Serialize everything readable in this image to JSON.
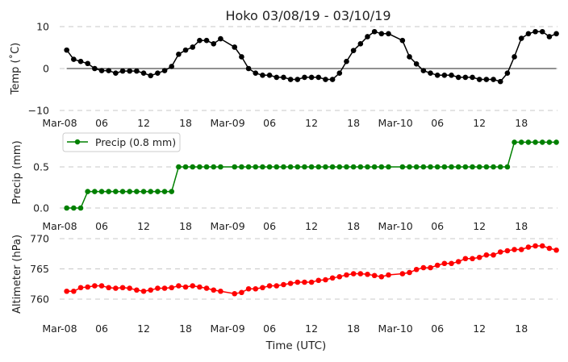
{
  "chart_data": [
    {
      "type": "line",
      "title": "Hoko 03/08/19 - 03/10/19",
      "ylabel": "Temp ($^\\circ$C)",
      "ylabel_display": "Temp (˚C)",
      "ylim": [
        -10,
        10
      ],
      "yticks": [
        "10",
        "0",
        "−10"
      ],
      "ytick_values": [
        10,
        0,
        -10
      ],
      "color": "#000000",
      "grid": true,
      "zero_line": true,
      "x_hours": [
        1,
        2,
        3,
        4,
        5,
        6,
        7,
        8,
        9,
        10,
        11,
        12,
        13,
        14,
        15,
        16,
        17,
        18,
        19,
        20,
        21,
        22,
        23,
        25,
        26,
        27,
        28,
        29,
        30,
        31,
        32,
        33,
        34,
        35,
        36,
        37,
        38,
        39,
        40,
        41,
        42,
        43,
        44,
        45,
        46,
        47,
        49,
        50,
        51,
        52,
        53,
        54,
        55,
        56,
        57,
        58,
        59,
        60,
        61,
        62,
        63,
        64,
        65,
        66,
        67,
        68,
        69,
        70,
        71
      ],
      "values": [
        4.4,
        2.2,
        1.7,
        1.2,
        0,
        -0.5,
        -0.5,
        -1.1,
        -0.6,
        -0.6,
        -0.6,
        -1.1,
        -1.7,
        -1.1,
        -0.5,
        0.5,
        3.4,
        4.4,
        5.1,
        6.7,
        6.7,
        5.9,
        7.1,
        5.1,
        2.8,
        0,
        -1.1,
        -1.6,
        -1.6,
        -2.1,
        -2.1,
        -2.6,
        -2.6,
        -2.1,
        -2.1,
        -2.1,
        -2.6,
        -2.6,
        -1.1,
        1.7,
        4.3,
        5.9,
        7.6,
        8.8,
        8.3,
        8.3,
        6.7,
        2.8,
        1.1,
        -0.5,
        -1.1,
        -1.6,
        -1.6,
        -1.6,
        -2.1,
        -2.1,
        -2.1,
        -2.6,
        -2.6,
        -2.6,
        -3.1,
        -1.1,
        2.8,
        7.2,
        8.3,
        8.8,
        8.8,
        7.6,
        8.3
      ]
    },
    {
      "type": "line",
      "ylabel": "Precip (mm)",
      "ylim": [
        0,
        0.8
      ],
      "yticks": [
        "0.5",
        "0.0"
      ],
      "ytick_values": [
        0.5,
        0
      ],
      "color": "#008000",
      "legend": {
        "label": "Precip (0.8 mm)",
        "placement": "upper-left"
      },
      "grid": true,
      "x_hours": [
        1,
        2,
        3,
        4,
        5,
        6,
        7,
        8,
        9,
        10,
        11,
        12,
        13,
        14,
        15,
        16,
        17,
        18,
        19,
        20,
        21,
        22,
        23,
        25,
        26,
        27,
        28,
        29,
        30,
        31,
        32,
        33,
        34,
        35,
        36,
        37,
        38,
        39,
        40,
        41,
        42,
        43,
        44,
        45,
        46,
        47,
        49,
        50,
        51,
        52,
        53,
        54,
        55,
        56,
        57,
        58,
        59,
        60,
        61,
        62,
        63,
        64,
        65,
        66,
        67,
        68,
        69,
        70,
        71
      ],
      "values": [
        0,
        0,
        0,
        0.2,
        0.2,
        0.2,
        0.2,
        0.2,
        0.2,
        0.2,
        0.2,
        0.2,
        0.2,
        0.2,
        0.2,
        0.2,
        0.5,
        0.5,
        0.5,
        0.5,
        0.5,
        0.5,
        0.5,
        0.5,
        0.5,
        0.5,
        0.5,
        0.5,
        0.5,
        0.5,
        0.5,
        0.5,
        0.5,
        0.5,
        0.5,
        0.5,
        0.5,
        0.5,
        0.5,
        0.5,
        0.5,
        0.5,
        0.5,
        0.5,
        0.5,
        0.5,
        0.5,
        0.5,
        0.5,
        0.5,
        0.5,
        0.5,
        0.5,
        0.5,
        0.5,
        0.5,
        0.5,
        0.5,
        0.5,
        0.5,
        0.5,
        0.5,
        0.8,
        0.8,
        0.8,
        0.8,
        0.8,
        0.8,
        0.8
      ]
    },
    {
      "type": "line",
      "ylabel": "Altimeter (hPa)",
      "xlabel": "Time (UTC)",
      "ylim": [
        756,
        771
      ],
      "yticks": [
        "770",
        "765",
        "760"
      ],
      "ytick_values": [
        770,
        765,
        760
      ],
      "color": "#ff0000",
      "grid": true,
      "x_hours": [
        1,
        2,
        3,
        4,
        5,
        6,
        7,
        8,
        9,
        10,
        11,
        12,
        13,
        14,
        15,
        16,
        17,
        18,
        19,
        20,
        21,
        22,
        23,
        25,
        26,
        27,
        28,
        29,
        30,
        31,
        32,
        33,
        34,
        35,
        36,
        37,
        38,
        39,
        40,
        41,
        42,
        43,
        44,
        45,
        46,
        47,
        49,
        50,
        51,
        52,
        53,
        54,
        55,
        56,
        57,
        58,
        59,
        60,
        61,
        62,
        63,
        64,
        65,
        66,
        67,
        68,
        69,
        70,
        71
      ],
      "values": [
        761.3,
        761.3,
        761.9,
        762.0,
        762.2,
        762.2,
        761.9,
        761.8,
        761.9,
        761.8,
        761.5,
        761.3,
        761.5,
        761.8,
        761.8,
        761.9,
        762.2,
        762.0,
        762.2,
        762.0,
        761.8,
        761.5,
        761.3,
        760.9,
        761.1,
        761.7,
        761.7,
        761.9,
        762.2,
        762.2,
        762.4,
        762.6,
        762.8,
        762.8,
        762.8,
        763.1,
        763.2,
        763.5,
        763.7,
        764.0,
        764.2,
        764.2,
        764.1,
        763.9,
        763.7,
        764.0,
        764.2,
        764.4,
        764.9,
        765.2,
        765.2,
        765.6,
        765.9,
        765.9,
        766.2,
        766.7,
        766.7,
        766.9,
        767.3,
        767.3,
        767.8,
        768.0,
        768.2,
        768.2,
        768.6,
        768.8,
        768.8,
        768.4,
        768.1
      ]
    }
  ],
  "x_axis": {
    "tick_labels": [
      "Mar-08",
      "06",
      "12",
      "18",
      "Mar-09",
      "06",
      "12",
      "18",
      "Mar-10",
      "06",
      "12",
      "18"
    ],
    "tick_hours": [
      0,
      6,
      12,
      18,
      24,
      30,
      36,
      42,
      48,
      54,
      60,
      66
    ],
    "range_hours": [
      0,
      72
    ]
  }
}
